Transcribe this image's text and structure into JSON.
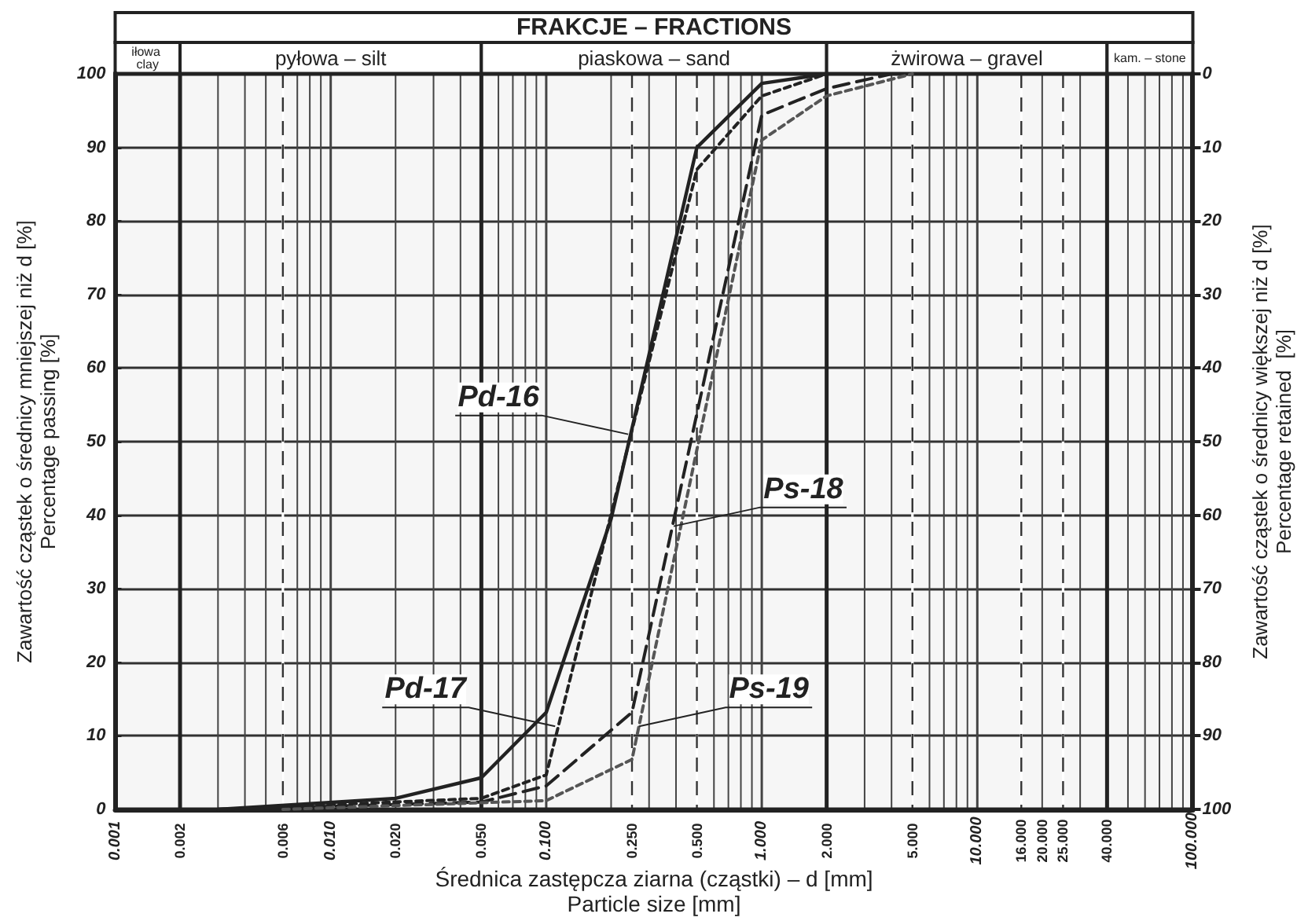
{
  "chart_data": {
    "type": "line",
    "title": "FRAKCJE – FRACTIONS",
    "xlabel": "Średnica zastępcza ziarna (cząstki) – d [mm]\nParticle size [mm]",
    "ylabel": "Zawartość cząstek o średnicy mniejszej niż d [%]\nPercentage passing [%]",
    "y2label": "Zawartość cząstek o średnicy większej niż d [%]\nPercentage retained  [%]",
    "log": "x",
    "grid": true,
    "marker": "none",
    "xlim": [
      0.001,
      100
    ],
    "xticks": [
      {
        "value": 0.001,
        "label": "0.001"
      },
      {
        "value": 0.002,
        "label": "0.002"
      },
      {
        "value": 0.006,
        "label": "0.006"
      },
      {
        "value": 0.01,
        "label": "0.010"
      },
      {
        "value": 0.02,
        "label": "0.020"
      },
      {
        "value": 0.05,
        "label": "0.050"
      },
      {
        "value": 0.1,
        "label": "0.100"
      },
      {
        "value": 0.25,
        "label": "0.250"
      },
      {
        "value": 0.5,
        "label": "0.500"
      },
      {
        "value": 1,
        "label": "1.000"
      },
      {
        "value": 2,
        "label": "2.000"
      },
      {
        "value": 5,
        "label": "5.000"
      },
      {
        "value": 10,
        "label": "10.000"
      },
      {
        "value": 16,
        "label": "16.000"
      },
      {
        "value": 20,
        "label": "20.000"
      },
      {
        "value": 25,
        "label": "25.000"
      },
      {
        "value": 40,
        "label": "40.000"
      },
      {
        "value": 100,
        "label": "100.000"
      }
    ],
    "ylim": [
      0,
      100
    ],
    "yticks": [
      0,
      10,
      20,
      30,
      40,
      50,
      60,
      70,
      80,
      90,
      100
    ],
    "y2lim": [
      100,
      0
    ],
    "y2ticks": [
      0,
      10,
      20,
      30,
      40,
      50,
      60,
      70,
      80,
      90,
      100
    ],
    "bands": [
      {
        "axis": "x",
        "from": 0.001,
        "to": 0.002,
        "label": "iłowa clay"
      },
      {
        "axis": "x",
        "from": 0.002,
        "to": 0.05,
        "label": "pyłowa – silt"
      },
      {
        "axis": "x",
        "from": 0.05,
        "to": 2,
        "label": "piaskowa – sand"
      },
      {
        "axis": "x",
        "from": 2,
        "to": 40,
        "label": "żwirowa – gravel"
      },
      {
        "axis": "x",
        "from": 40,
        "to": 100,
        "label": "kam. – stone"
      }
    ],
    "series": [
      {
        "color": "#222222",
        "line_style": "solid",
        "x": [
          0.003,
          0.02,
          0.05,
          0.1,
          0.2,
          0.5,
          1,
          2
        ],
        "values": [
          0,
          1.5,
          4.3,
          13.2,
          39.5,
          90,
          98.7,
          100
        ]
      },
      {
        "color": "#222222",
        "line_style": "dotted",
        "x": [
          0.003,
          0.05,
          0.1,
          0.5,
          1,
          2
        ],
        "values": [
          0,
          1.5,
          4.7,
          87,
          97,
          100
        ]
      },
      {
        "color": "#222222",
        "line_style": "dashed",
        "x": [
          0.003,
          0.05,
          0.1,
          0.25,
          1,
          2,
          4
        ],
        "values": [
          0,
          1,
          3.2,
          13.2,
          94.4,
          98,
          100
        ]
      },
      {
        "color": "#555555",
        "line_style": "dotted",
        "x": [
          0.006,
          0.1,
          0.25,
          1,
          2,
          5
        ],
        "values": [
          0,
          1.2,
          6.8,
          91,
          97,
          100
        ]
      }
    ],
    "annotations": [
      {
        "text": "Pd-16",
        "x": 0.24,
        "y": 51
      },
      {
        "text": "Ps-18",
        "x": 0.39,
        "y": 38.5
      },
      {
        "text": "Pd-17",
        "x": 0.11,
        "y": 11.3
      },
      {
        "text": "Ps-19",
        "x": 0.27,
        "y": 11.3
      }
    ]
  }
}
